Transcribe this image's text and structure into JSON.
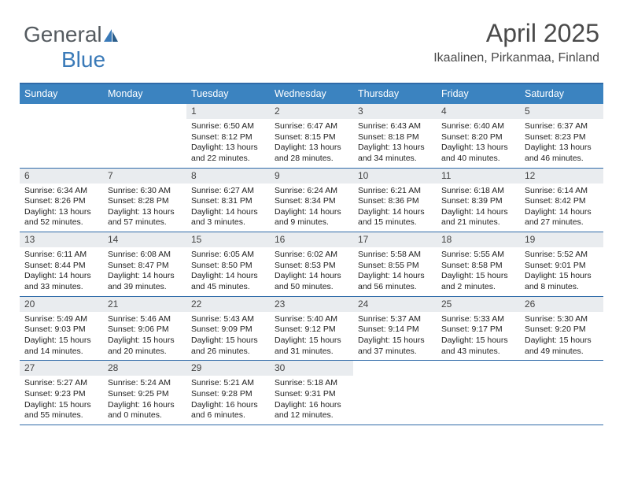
{
  "logo": {
    "text1": "General",
    "text2": "Blue"
  },
  "title": "April 2025",
  "subtitle": "Ikaalinen, Pirkanmaa, Finland",
  "colors": {
    "header_bg": "#3b83c0",
    "header_border": "#2f6aa8",
    "daynum_bg": "#e9ecef",
    "logo_gray": "#555b60",
    "logo_blue": "#3a7ab8"
  },
  "weekdays": [
    "Sunday",
    "Monday",
    "Tuesday",
    "Wednesday",
    "Thursday",
    "Friday",
    "Saturday"
  ],
  "weeks": [
    [
      null,
      null,
      {
        "n": "1",
        "sr": "6:50 AM",
        "ss": "8:12 PM",
        "dl": "13 hours and 22 minutes."
      },
      {
        "n": "2",
        "sr": "6:47 AM",
        "ss": "8:15 PM",
        "dl": "13 hours and 28 minutes."
      },
      {
        "n": "3",
        "sr": "6:43 AM",
        "ss": "8:18 PM",
        "dl": "13 hours and 34 minutes."
      },
      {
        "n": "4",
        "sr": "6:40 AM",
        "ss": "8:20 PM",
        "dl": "13 hours and 40 minutes."
      },
      {
        "n": "5",
        "sr": "6:37 AM",
        "ss": "8:23 PM",
        "dl": "13 hours and 46 minutes."
      }
    ],
    [
      {
        "n": "6",
        "sr": "6:34 AM",
        "ss": "8:26 PM",
        "dl": "13 hours and 52 minutes."
      },
      {
        "n": "7",
        "sr": "6:30 AM",
        "ss": "8:28 PM",
        "dl": "13 hours and 57 minutes."
      },
      {
        "n": "8",
        "sr": "6:27 AM",
        "ss": "8:31 PM",
        "dl": "14 hours and 3 minutes."
      },
      {
        "n": "9",
        "sr": "6:24 AM",
        "ss": "8:34 PM",
        "dl": "14 hours and 9 minutes."
      },
      {
        "n": "10",
        "sr": "6:21 AM",
        "ss": "8:36 PM",
        "dl": "14 hours and 15 minutes."
      },
      {
        "n": "11",
        "sr": "6:18 AM",
        "ss": "8:39 PM",
        "dl": "14 hours and 21 minutes."
      },
      {
        "n": "12",
        "sr": "6:14 AM",
        "ss": "8:42 PM",
        "dl": "14 hours and 27 minutes."
      }
    ],
    [
      {
        "n": "13",
        "sr": "6:11 AM",
        "ss": "8:44 PM",
        "dl": "14 hours and 33 minutes."
      },
      {
        "n": "14",
        "sr": "6:08 AM",
        "ss": "8:47 PM",
        "dl": "14 hours and 39 minutes."
      },
      {
        "n": "15",
        "sr": "6:05 AM",
        "ss": "8:50 PM",
        "dl": "14 hours and 45 minutes."
      },
      {
        "n": "16",
        "sr": "6:02 AM",
        "ss": "8:53 PM",
        "dl": "14 hours and 50 minutes."
      },
      {
        "n": "17",
        "sr": "5:58 AM",
        "ss": "8:55 PM",
        "dl": "14 hours and 56 minutes."
      },
      {
        "n": "18",
        "sr": "5:55 AM",
        "ss": "8:58 PM",
        "dl": "15 hours and 2 minutes."
      },
      {
        "n": "19",
        "sr": "5:52 AM",
        "ss": "9:01 PM",
        "dl": "15 hours and 8 minutes."
      }
    ],
    [
      {
        "n": "20",
        "sr": "5:49 AM",
        "ss": "9:03 PM",
        "dl": "15 hours and 14 minutes."
      },
      {
        "n": "21",
        "sr": "5:46 AM",
        "ss": "9:06 PM",
        "dl": "15 hours and 20 minutes."
      },
      {
        "n": "22",
        "sr": "5:43 AM",
        "ss": "9:09 PM",
        "dl": "15 hours and 26 minutes."
      },
      {
        "n": "23",
        "sr": "5:40 AM",
        "ss": "9:12 PM",
        "dl": "15 hours and 31 minutes."
      },
      {
        "n": "24",
        "sr": "5:37 AM",
        "ss": "9:14 PM",
        "dl": "15 hours and 37 minutes."
      },
      {
        "n": "25",
        "sr": "5:33 AM",
        "ss": "9:17 PM",
        "dl": "15 hours and 43 minutes."
      },
      {
        "n": "26",
        "sr": "5:30 AM",
        "ss": "9:20 PM",
        "dl": "15 hours and 49 minutes."
      }
    ],
    [
      {
        "n": "27",
        "sr": "5:27 AM",
        "ss": "9:23 PM",
        "dl": "15 hours and 55 minutes."
      },
      {
        "n": "28",
        "sr": "5:24 AM",
        "ss": "9:25 PM",
        "dl": "16 hours and 0 minutes."
      },
      {
        "n": "29",
        "sr": "5:21 AM",
        "ss": "9:28 PM",
        "dl": "16 hours and 6 minutes."
      },
      {
        "n": "30",
        "sr": "5:18 AM",
        "ss": "9:31 PM",
        "dl": "16 hours and 12 minutes."
      },
      null,
      null,
      null
    ]
  ],
  "labels": {
    "sunrise": "Sunrise: ",
    "sunset": "Sunset: ",
    "daylight": "Daylight: "
  }
}
